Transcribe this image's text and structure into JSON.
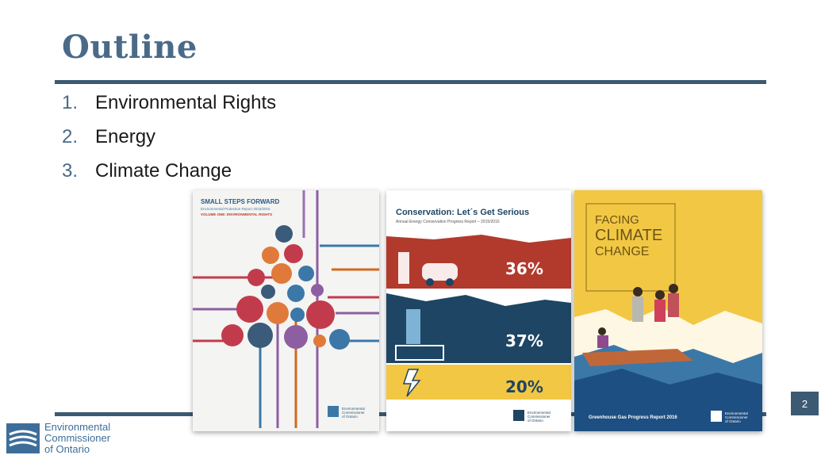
{
  "slide": {
    "title": "Outline",
    "items": [
      {
        "num": "1.",
        "text": "Environmental Rights"
      },
      {
        "num": "2.",
        "text": "Energy"
      },
      {
        "num": "3.",
        "text": "Climate Change"
      }
    ],
    "page_number": "2"
  },
  "logo": {
    "line1": "Environmental",
    "line2": "Commissioner",
    "line3": "of Ontario",
    "icon": "eco-logo-icon"
  },
  "covers": {
    "report1": {
      "heading": "SMALL STEPS FORWARD",
      "subheading": "Environmental Protection Report 2015/2016",
      "volume": "VOLUME ONE: ENVIRONMENTAL RIGHTS",
      "publisher_lines": [
        "Environmental",
        "Commissioner",
        "of Ontario"
      ]
    },
    "report2": {
      "heading": "Conservation: Let´s Get Serious",
      "subheading": "Annual Energy Conservation Progress Report – 2015/2016",
      "stats": [
        "36%",
        "37%",
        "20%"
      ],
      "publisher_lines": [
        "Environmental",
        "Commissioner",
        "of Ontario"
      ]
    },
    "report3": {
      "heading_lines": [
        "FACING",
        "CLIMATE",
        "CHANGE"
      ],
      "footer": "Greenhouse Gas Progress Report 2016",
      "publisher_lines": [
        "Environmental",
        "Commissioner",
        "of Ontario"
      ]
    }
  },
  "colors": {
    "title": "#4a6a88",
    "rule": "#3d5a73",
    "red": "#b23a2c",
    "navy": "#1e4563",
    "yellow": "#f2c744"
  }
}
